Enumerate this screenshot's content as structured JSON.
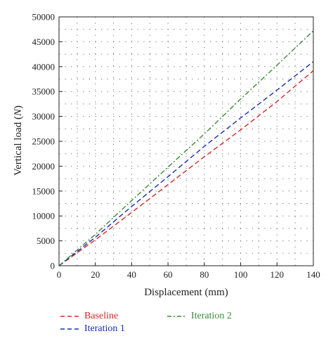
{
  "chart_data": {
    "type": "line",
    "title": "",
    "xlabel": "Displacement (mm)",
    "ylabel_prefix": "Vertical load (",
    "ylabel_unit": "N",
    "ylabel_suffix": ")",
    "xlim": [
      0,
      140
    ],
    "ylim": [
      0,
      50000
    ],
    "xticks": [
      0,
      20,
      40,
      60,
      80,
      100,
      120,
      140
    ],
    "yticks": [
      0,
      5000,
      10000,
      15000,
      20000,
      25000,
      30000,
      35000,
      40000,
      45000,
      50000
    ],
    "grid": true,
    "legend_position": "bottom",
    "series": [
      {
        "name": "Baseline",
        "color": "#d62828",
        "dash": "dashed",
        "x": [
          0,
          20,
          40,
          60,
          80,
          100,
          120,
          140
        ],
        "y": [
          0,
          5200,
          10700,
          16300,
          21900,
          27300,
          33000,
          39200
        ]
      },
      {
        "name": "Iteration 1",
        "color": "#1a2bb5",
        "dash": "dashed",
        "x": [
          0,
          20,
          40,
          60,
          80,
          100,
          120,
          140
        ],
        "y": [
          0,
          5700,
          11900,
          17900,
          24000,
          29700,
          35300,
          41000
        ]
      },
      {
        "name": "Iteration 2",
        "color": "#3a8a3a",
        "dash": "dashdot",
        "x": [
          0,
          20,
          40,
          60,
          80,
          100,
          120,
          140
        ],
        "y": [
          0,
          6300,
          13100,
          19800,
          26500,
          33500,
          40300,
          47200
        ]
      }
    ]
  }
}
